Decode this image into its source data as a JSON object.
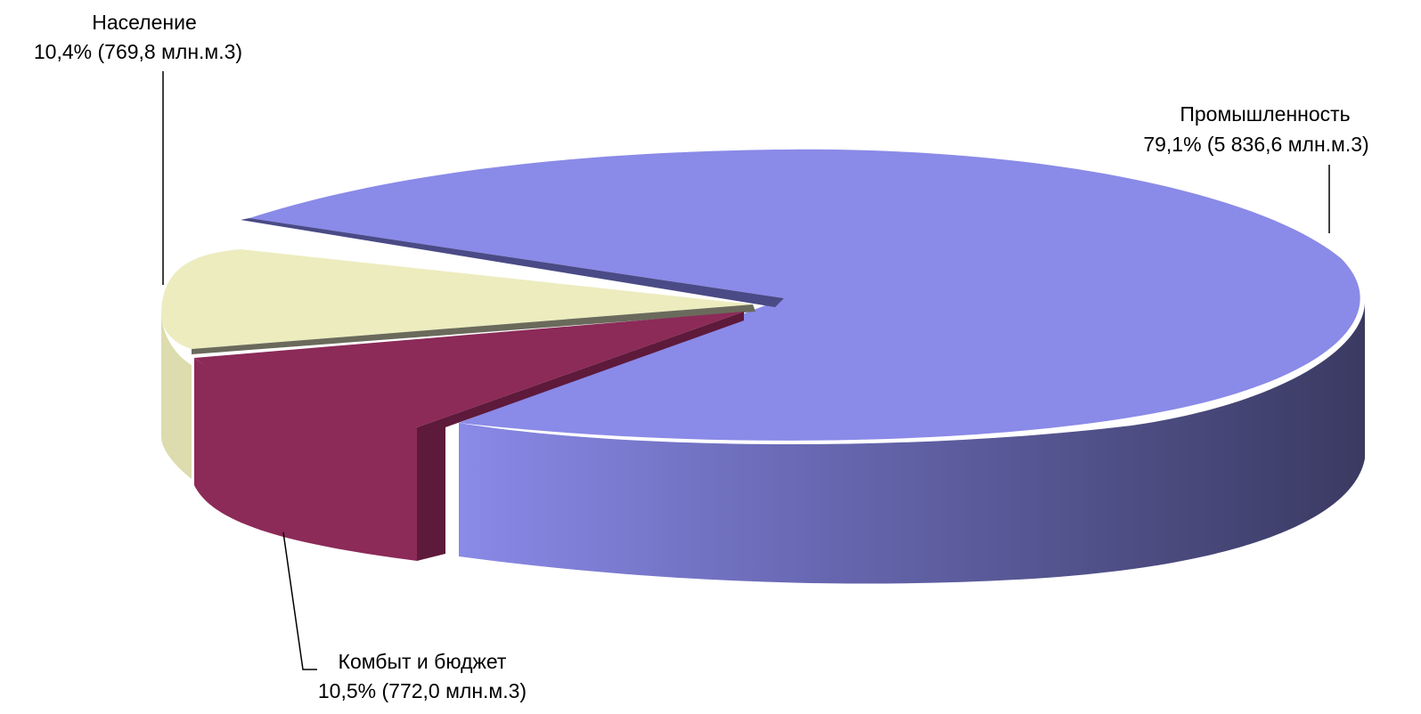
{
  "chart_data": {
    "type": "pie",
    "title": "",
    "slices": [
      {
        "name": "Промышленность",
        "percent_label": "79,1% (5 836,6 млн.м.3)",
        "percent": 79.1,
        "value": 5836.6,
        "color": "#8a8ae8",
        "side_color": "#3d3d66"
      },
      {
        "name": "Население",
        "percent_label": "10,4% (769,8 млн.м.3)",
        "percent": 10.4,
        "value": 769.8,
        "color": "#ececbf",
        "side_color": "#dcdcae"
      },
      {
        "name": "Комбыт и бюджет",
        "percent_label": "10,5% (772,0 млн.м.3)",
        "percent": 10.5,
        "value": 772.0,
        "color": "#8c2a58",
        "side_color": "#5e1a3b"
      }
    ]
  }
}
